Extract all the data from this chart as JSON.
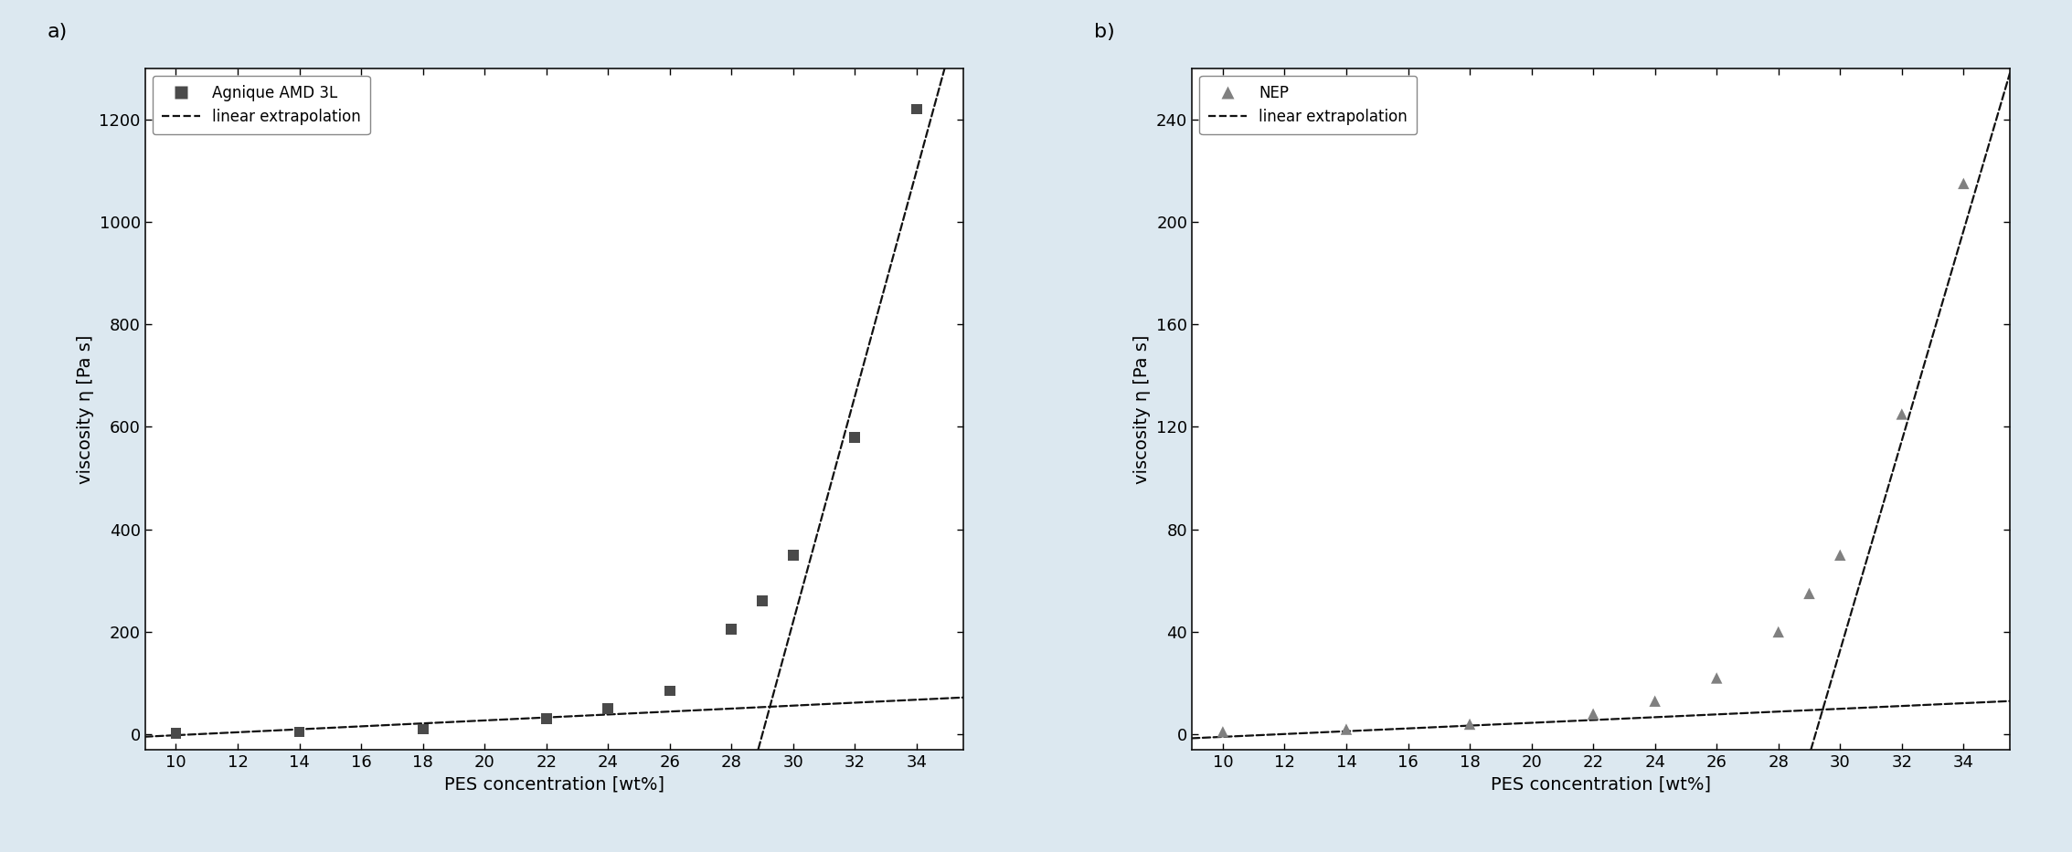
{
  "panel_a": {
    "label": "Agnique AMD 3L",
    "x": [
      10,
      14,
      18,
      22,
      24,
      26,
      28,
      29,
      30,
      32,
      34
    ],
    "y": [
      2,
      5,
      10,
      30,
      50,
      85,
      205,
      260,
      350,
      580,
      1220
    ],
    "ylim": [
      -30,
      1300
    ],
    "yticks": [
      0,
      200,
      400,
      600,
      800,
      1000,
      1200
    ],
    "line1_pts": [
      [
        9,
        -4.5
      ],
      [
        35.5,
        72
      ]
    ],
    "line2_pts": [
      [
        29.0,
        0
      ],
      [
        35.5,
        1430
      ]
    ],
    "marker": "s",
    "marker_color": "#4a4a4a",
    "marker_size": 72,
    "panel_label": "a)"
  },
  "panel_b": {
    "label": "NEP",
    "x": [
      10,
      14,
      18,
      22,
      24,
      26,
      28,
      29,
      30,
      32,
      34
    ],
    "y": [
      1,
      2,
      4,
      8,
      13,
      22,
      40,
      55,
      70,
      125,
      215
    ],
    "ylim": [
      -6,
      260
    ],
    "yticks": [
      0,
      40,
      80,
      120,
      160,
      200,
      240
    ],
    "line1_pts": [
      [
        9,
        -1.5
      ],
      [
        35.5,
        13
      ]
    ],
    "line2_pts": [
      [
        29.2,
        0
      ],
      [
        35.5,
        258
      ]
    ],
    "marker": "^",
    "marker_color": "#808080",
    "marker_size": 80,
    "panel_label": "b)"
  },
  "xlabel": "PES concentration [wt%]",
  "ylabel": "viscosity η [Pa s]",
  "xticks": [
    10,
    12,
    14,
    16,
    18,
    20,
    22,
    24,
    26,
    28,
    30,
    32,
    34
  ],
  "xlim": [
    9,
    35.5
  ],
  "figure_bg": "#dce8f0",
  "plot_bg": "#ffffff",
  "line_color": "#111111",
  "legend_label_line": "linear extrapolation",
  "tick_fontsize": 13,
  "label_fontsize": 14,
  "panel_label_fontsize": 16
}
